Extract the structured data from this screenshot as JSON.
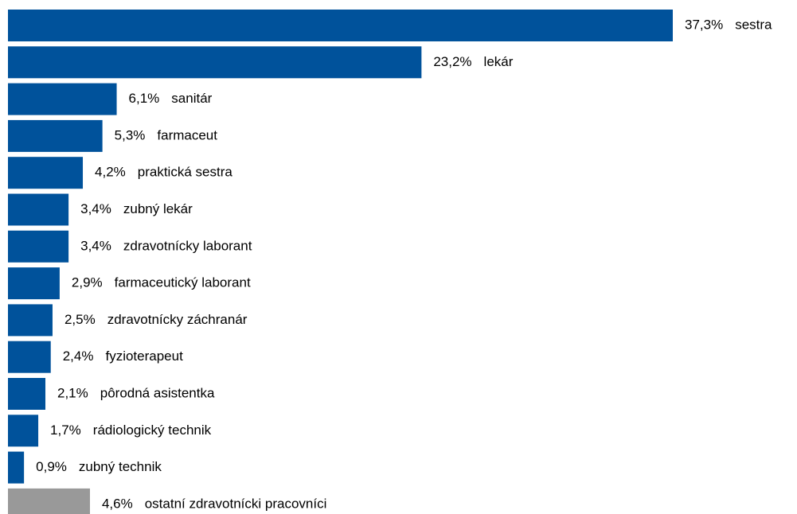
{
  "chart_data": {
    "type": "bar",
    "orientation": "horizontal",
    "categories": [
      "sestra",
      "lekár",
      "sanitár",
      "farmaceut",
      "praktická sestra",
      "zubný lekár",
      "zdravotnícky laborant",
      "farmaceutický laborant",
      "zdravotnícky záchranár",
      "fyzioterapeut",
      "pôrodná asistentka",
      "rádiologický technik",
      "zubný technik",
      "ostatní zdravotnícki pracovníci"
    ],
    "values": [
      37.3,
      23.2,
      6.1,
      5.3,
      4.2,
      3.4,
      3.4,
      2.9,
      2.5,
      2.4,
      2.1,
      1.7,
      0.9,
      4.6
    ],
    "value_labels": [
      "37,3%",
      "23,2%",
      "6,1%",
      "5,3%",
      "4,2%",
      "3,4%",
      "3,4%",
      "2,9%",
      "2,5%",
      "2,4%",
      "2,1%",
      "1,7%",
      "0,9%",
      "4,6%"
    ],
    "colors": [
      "#00529b",
      "#00529b",
      "#00529b",
      "#00529b",
      "#00529b",
      "#00529b",
      "#00529b",
      "#00529b",
      "#00529b",
      "#00529b",
      "#00529b",
      "#00529b",
      "#00529b",
      "#999999"
    ]
  }
}
